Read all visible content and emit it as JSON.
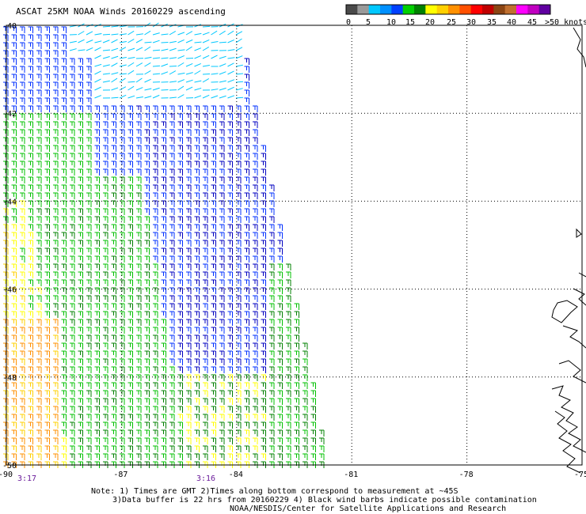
{
  "title": "ASCAT 25KM NOAA Winds 20160229 ascending",
  "legend": {
    "colors": [
      "#4a4a4a",
      "#9a9a9a",
      "#00c8ff",
      "#0090ff",
      "#0040ff",
      "#00d000",
      "#008000",
      "#ffff00",
      "#ffd000",
      "#ff9000",
      "#ff5000",
      "#ff0000",
      "#c00000",
      "#8b4513",
      "#c07030",
      "#ff00ff",
      "#c000c0",
      "#6000a0"
    ],
    "ticks": [
      "0",
      "5",
      "10",
      "15",
      "20",
      "25",
      "30",
      "35",
      "40",
      "45",
      ">50 knots"
    ]
  },
  "axes": {
    "lon_ticks": [
      "-90",
      "-87",
      "-84",
      "-81",
      "-78",
      "-75"
    ],
    "lon_values": [
      -90,
      -87,
      -84,
      -81,
      -78,
      -75
    ],
    "lat_ticks": [
      "-40",
      "-42",
      "-44",
      "-46",
      "-48",
      "-50"
    ],
    "lat_values": [
      -40,
      -42,
      -44,
      -46,
      -48,
      -50
    ]
  },
  "extent": {
    "lon_min": -90,
    "lon_max": -75,
    "lat_max": -40,
    "lat_min": -50
  },
  "times": {
    "left": "3:17",
    "middle": "3:16"
  },
  "notes": {
    "line1": "Note: 1) Times are GMT 2)Times along bottom correspond to measurement at ~45S",
    "line2": "3)Data buffer is 22 hrs from 20160229 4) Black wind barbs indicate possible contamination",
    "line3": "NOAA/NESDIS/Center for Satellite Applications and Research"
  },
  "wind_colors": {
    "cyan": "#00c8ff",
    "blue": "#0030ff",
    "navy": "#0000c0",
    "green": "#00c000",
    "darkgreen": "#008000",
    "yellow": "#ffff00",
    "gold": "#ffd000",
    "orange": "#ff9000"
  }
}
